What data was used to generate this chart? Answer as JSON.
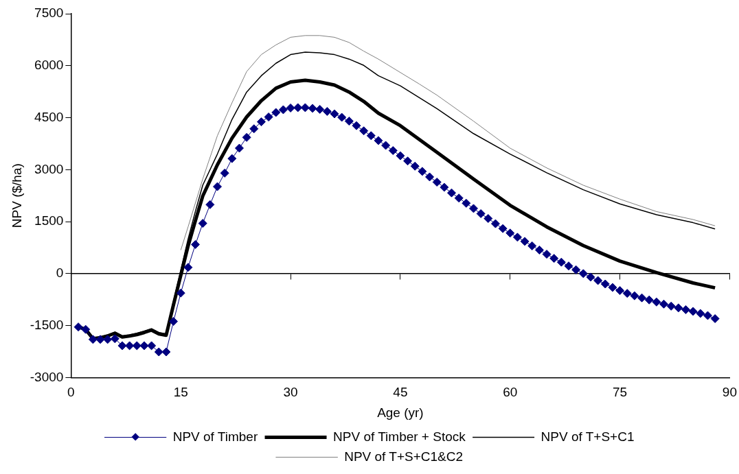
{
  "chart_data": {
    "type": "line",
    "xlabel": "Age (yr)",
    "ylabel": "NPV ($/ha)",
    "xlim": [
      0,
      90
    ],
    "xticks": [
      0,
      15,
      30,
      45,
      60,
      75,
      90
    ],
    "ylim": [
      -3000,
      7500
    ],
    "yticks": [
      -3000,
      -1500,
      0,
      1500,
      3000,
      4500,
      6000,
      7500
    ],
    "legend": "bottom",
    "series": [
      {
        "name": "NPV of Timber",
        "color": "#000080",
        "marker": "diamond",
        "x": [
          1,
          2,
          3,
          4,
          5,
          6,
          7,
          8,
          9,
          10,
          11,
          12,
          13,
          14,
          15,
          16,
          17,
          18,
          19,
          20,
          21,
          22,
          23,
          24,
          25,
          26,
          27,
          28,
          29,
          30,
          31,
          32,
          33,
          34,
          35,
          36,
          37,
          38,
          39,
          40,
          41,
          42,
          43,
          44,
          45,
          46,
          47,
          48,
          49,
          50,
          51,
          52,
          53,
          54,
          55,
          56,
          57,
          58,
          59,
          60,
          61,
          62,
          63,
          64,
          65,
          66,
          67,
          68,
          69,
          70,
          71,
          72,
          73,
          74,
          75,
          76,
          77,
          78,
          79,
          80,
          81,
          82,
          83,
          84,
          85,
          86,
          87,
          88
        ],
        "values": [
          -1540,
          -1610,
          -1900,
          -1900,
          -1900,
          -1880,
          -2080,
          -2080,
          -2080,
          -2080,
          -2080,
          -2260,
          -2260,
          -1380,
          -560,
          180,
          840,
          1450,
          1990,
          2510,
          2900,
          3320,
          3620,
          3930,
          4180,
          4380,
          4520,
          4650,
          4730,
          4780,
          4790,
          4790,
          4770,
          4740,
          4680,
          4610,
          4510,
          4400,
          4270,
          4120,
          3980,
          3840,
          3700,
          3550,
          3400,
          3250,
          3100,
          2950,
          2790,
          2640,
          2490,
          2330,
          2180,
          2030,
          1880,
          1730,
          1590,
          1440,
          1300,
          1170,
          1050,
          930,
          800,
          680,
          560,
          440,
          330,
          220,
          110,
          0,
          -100,
          -200,
          -300,
          -400,
          -490,
          -570,
          -640,
          -700,
          -760,
          -820,
          -880,
          -940,
          -990,
          -1040,
          -1090,
          -1150,
          -1210,
          -1300
        ]
      },
      {
        "name": "NPV of Timber + Stock",
        "color": "#000000",
        "x": [
          1,
          2,
          3,
          4,
          5,
          6,
          7,
          8,
          9,
          10,
          11,
          12,
          13,
          14,
          15,
          16,
          17,
          18,
          20,
          22,
          24,
          26,
          28,
          30,
          32,
          34,
          36,
          38,
          40,
          42,
          45,
          50,
          55,
          60,
          65,
          70,
          75,
          80,
          85,
          88
        ],
        "values": [
          -1540,
          -1610,
          -1880,
          -1850,
          -1800,
          -1720,
          -1830,
          -1800,
          -1760,
          -1700,
          -1630,
          -1740,
          -1780,
          -900,
          -50,
          800,
          1530,
          2240,
          3140,
          3910,
          4520,
          4990,
          5350,
          5530,
          5580,
          5530,
          5440,
          5240,
          4970,
          4630,
          4270,
          3500,
          2730,
          1970,
          1350,
          810,
          360,
          30,
          -270,
          -410
        ]
      },
      {
        "name": "NPV of T+S+C1",
        "color": "#000000",
        "x": [
          1,
          2,
          3,
          4,
          5,
          6,
          7,
          8,
          9,
          10,
          11,
          12,
          13,
          14,
          15,
          16,
          17,
          18,
          20,
          22,
          24,
          26,
          28,
          30,
          32,
          34,
          36,
          38,
          40,
          42,
          45,
          50,
          55,
          60,
          65,
          70,
          75,
          80,
          85,
          88
        ],
        "values": [
          -1540,
          -1610,
          -1870,
          -1830,
          -1770,
          -1690,
          -1800,
          -1770,
          -1720,
          -1660,
          -1590,
          -1700,
          -1740,
          -800,
          100,
          1000,
          1800,
          2550,
          3450,
          4450,
          5240,
          5710,
          6070,
          6320,
          6390,
          6370,
          6320,
          6190,
          6010,
          5710,
          5420,
          4760,
          4040,
          3450,
          2910,
          2420,
          2010,
          1700,
          1470,
          1290
        ]
      },
      {
        "name": "NPV of T+S+C1&C2",
        "color": "#808080",
        "x": [
          15,
          16,
          18,
          20,
          22,
          24,
          26,
          28,
          30,
          32,
          34,
          36,
          38,
          40,
          42,
          47.6,
          50,
          55,
          60,
          65,
          70,
          75,
          80,
          85,
          88
        ],
        "values": [
          680,
          1350,
          2730,
          3980,
          4930,
          5830,
          6320,
          6600,
          6820,
          6870,
          6870,
          6820,
          6670,
          6420,
          6190,
          5470,
          5150,
          4400,
          3620,
          3050,
          2550,
          2150,
          1790,
          1560,
          1380
        ]
      }
    ]
  }
}
